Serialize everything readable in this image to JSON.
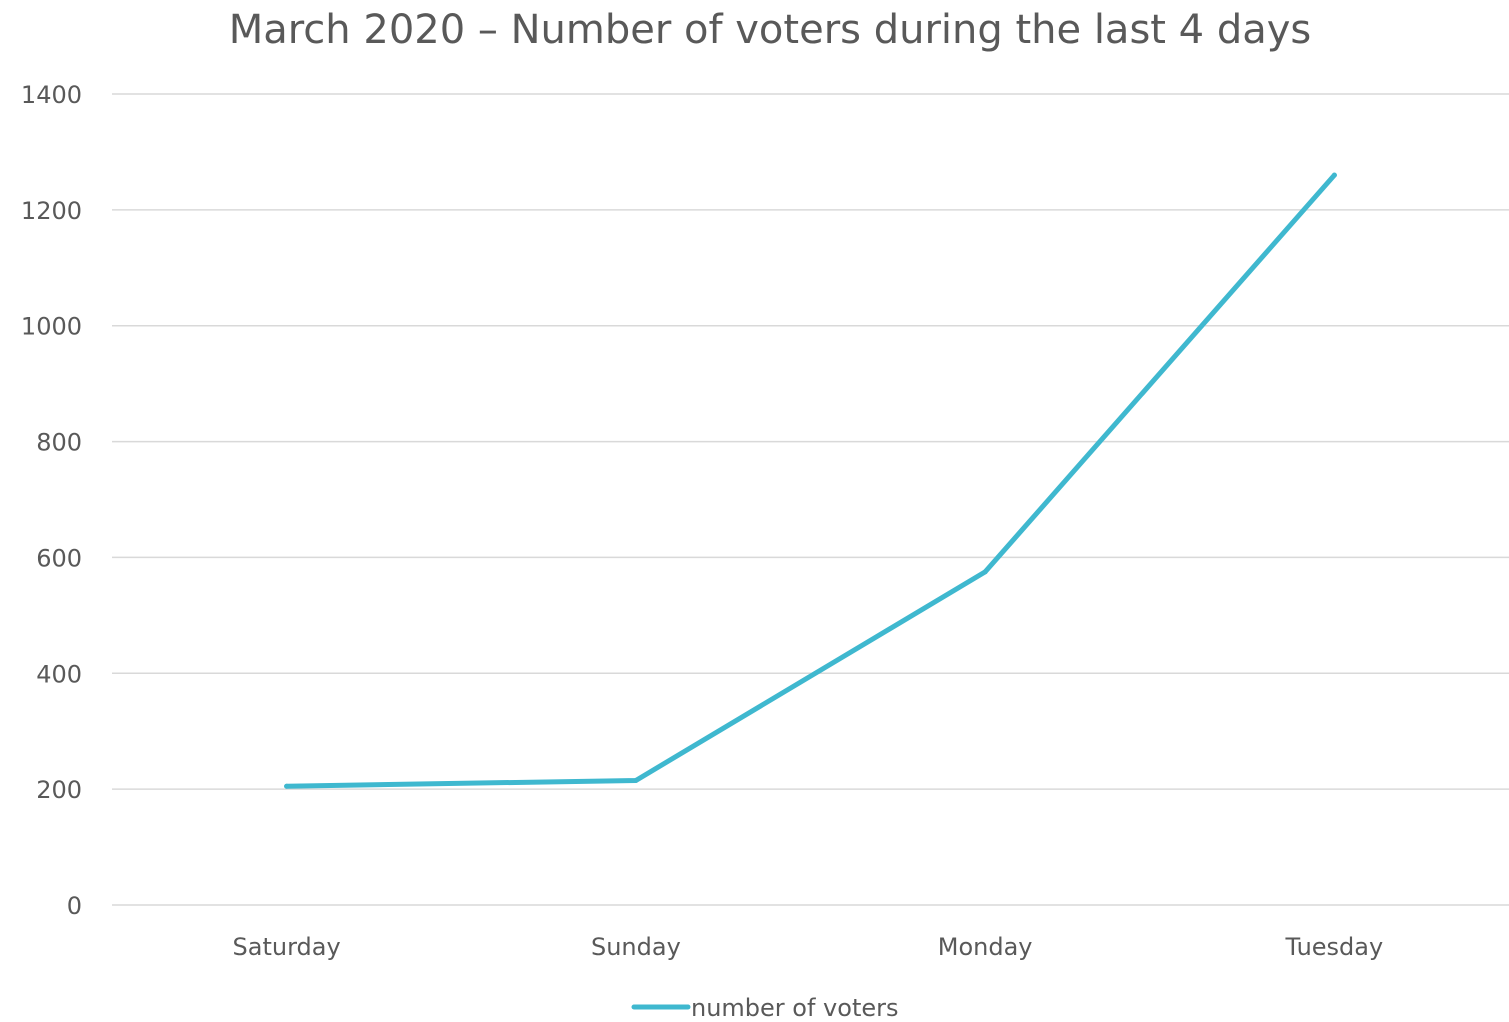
{
  "chart_data": {
    "type": "line",
    "title": "March 2020 – Number of voters during the last 4 days",
    "xlabel": "",
    "ylabel": "",
    "categories": [
      "Saturday",
      "Sunday",
      "Monday",
      "Tuesday"
    ],
    "series": [
      {
        "name": "number of voters",
        "color": "#3fb8cf",
        "values": [
          205,
          215,
          575,
          1260
        ]
      }
    ],
    "ylim": [
      0,
      1400
    ],
    "yticks": [
      0,
      200,
      400,
      600,
      800,
      1000,
      1200,
      1400
    ],
    "grid": true,
    "legend": "bottom"
  }
}
